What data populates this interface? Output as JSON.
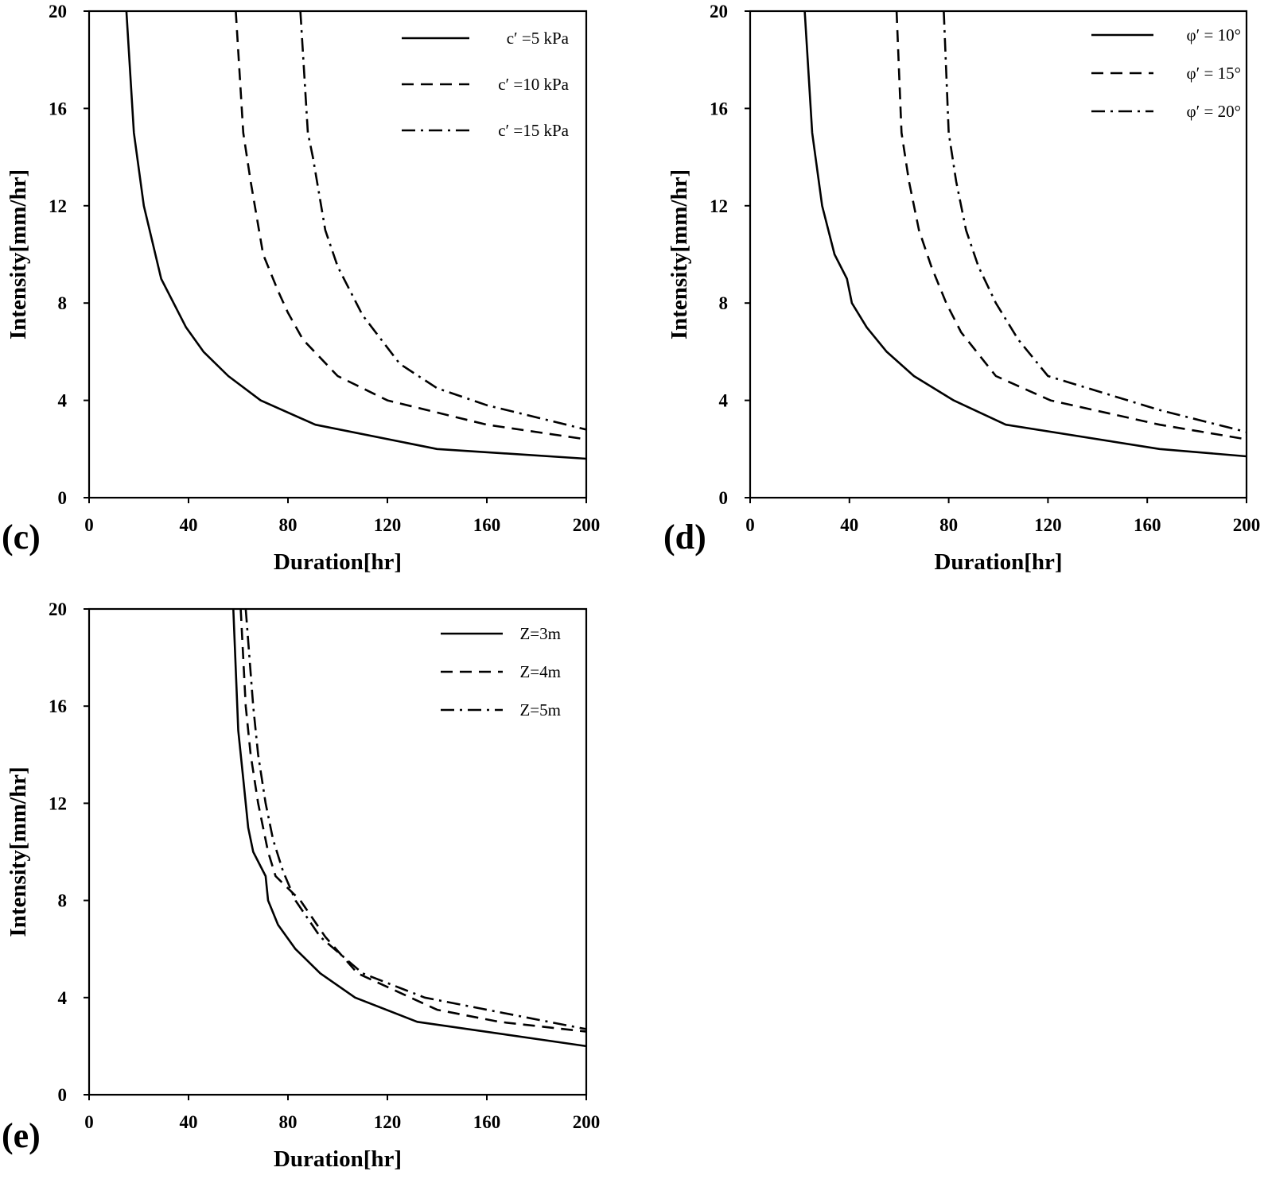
{
  "chart_data": [
    {
      "panel": "(c)",
      "type": "line",
      "xlabel": "Duration[hr]",
      "ylabel": "Intensity[mm/hr]",
      "xlim": [
        0,
        200
      ],
      "ylim": [
        0,
        20
      ],
      "xticks": [
        0,
        40,
        80,
        120,
        160,
        200
      ],
      "yticks": [
        0,
        4,
        8,
        12,
        16,
        20
      ],
      "legend_position": "top-right",
      "series": [
        {
          "name": "c′ =5  kPa",
          "style": "solid",
          "x": [
            15,
            18,
            22,
            29,
            39,
            46,
            56,
            69,
            91,
            140,
            200
          ],
          "y": [
            20,
            15,
            12,
            9,
            7,
            6,
            5,
            4,
            3,
            2,
            1.6
          ]
        },
        {
          "name": "c′ =10 kPa",
          "style": "dashed",
          "x": [
            59,
            62,
            65,
            70,
            76,
            80,
            86,
            100,
            120,
            160,
            200
          ],
          "y": [
            20,
            15,
            13,
            10,
            8.5,
            7.6,
            6.5,
            5,
            4,
            3,
            2.4
          ]
        },
        {
          "name": "c′ =15 kPa",
          "style": "dashdot",
          "x": [
            85,
            88,
            90,
            95,
            100,
            110,
            125,
            140,
            160,
            200
          ],
          "y": [
            20,
            15,
            14,
            11,
            9.5,
            7.5,
            5.5,
            4.5,
            3.8,
            2.8
          ]
        }
      ]
    },
    {
      "panel": "(d)",
      "type": "line",
      "xlabel": "Duration[hr]",
      "ylabel": "Intensity[mm/hr]",
      "xlim": [
        0,
        200
      ],
      "ylim": [
        0,
        20
      ],
      "xticks": [
        0,
        40,
        80,
        120,
        160,
        200
      ],
      "yticks": [
        0,
        4,
        8,
        12,
        16,
        20
      ],
      "legend_position": "top-right",
      "series": [
        {
          "name": "φ′ = 10°",
          "style": "solid",
          "x": [
            22,
            25,
            29,
            34,
            39,
            41,
            47,
            55,
            66,
            82,
            103,
            165,
            200
          ],
          "y": [
            20,
            15,
            12,
            10,
            9,
            8,
            7,
            6,
            5,
            4,
            3,
            2,
            1.7
          ]
        },
        {
          "name": "φ′ = 15°",
          "style": "dashed",
          "x": [
            59,
            61,
            64,
            68,
            73,
            79,
            85,
            99,
            121,
            165,
            200
          ],
          "y": [
            20,
            15,
            13,
            11,
            9.5,
            8,
            6.8,
            5,
            4,
            3,
            2.4
          ]
        },
        {
          "name": "φ′ = 20°",
          "style": "dashdot",
          "x": [
            78,
            80,
            83,
            87,
            92,
            99,
            108,
            120,
            165,
            200
          ],
          "y": [
            20,
            15,
            13,
            11,
            9.5,
            8,
            6.5,
            5,
            3.6,
            2.7
          ]
        }
      ]
    },
    {
      "panel": "(e)",
      "type": "line",
      "xlabel": "Duration[hr]",
      "ylabel": "Intensity[mm/hr]",
      "xlim": [
        0,
        200
      ],
      "ylim": [
        0,
        20
      ],
      "xticks": [
        0,
        40,
        80,
        120,
        160,
        200
      ],
      "yticks": [
        0,
        4,
        8,
        12,
        16,
        20
      ],
      "legend_position": "top-right",
      "series": [
        {
          "name": "Z=3m",
          "style": "solid",
          "x": [
            58,
            60,
            62,
            64,
            66,
            71,
            72,
            76,
            83,
            93,
            107,
            132,
            200
          ],
          "y": [
            20,
            15,
            13,
            11,
            10,
            9,
            8,
            7,
            6,
            5,
            4,
            3,
            2
          ]
        },
        {
          "name": "Z=4m",
          "style": "dashed",
          "x": [
            61,
            63,
            65,
            68,
            72,
            75,
            80,
            85,
            95,
            108,
            140,
            165,
            200
          ],
          "y": [
            20,
            16,
            14,
            12,
            10,
            9,
            8.5,
            8,
            6.5,
            5,
            3.5,
            3,
            2.6
          ]
        },
        {
          "name": "Z=5m",
          "style": "dashdot",
          "x": [
            63,
            66,
            68,
            71,
            74,
            78,
            83,
            93,
            110,
            135,
            170,
            200
          ],
          "y": [
            20,
            16,
            14,
            12,
            10.5,
            9.2,
            8,
            6.5,
            5,
            4,
            3.3,
            2.7
          ]
        }
      ]
    }
  ]
}
